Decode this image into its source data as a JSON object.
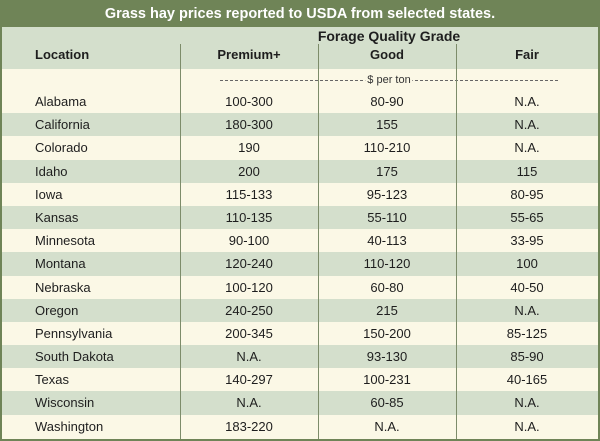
{
  "title": "Grass hay prices reported to USDA from selected states.",
  "header": {
    "group_label": "Forage Quality Grade",
    "columns": [
      "Location",
      "Premium+",
      "Good",
      "Fair"
    ]
  },
  "units": "$ per ton",
  "rows": [
    [
      "Alabama",
      "100-300",
      "80-90",
      "N.A."
    ],
    [
      "California",
      "180-300",
      "155",
      "N.A."
    ],
    [
      "Colorado",
      "190",
      "110-210",
      "N.A."
    ],
    [
      "Idaho",
      "200",
      "175",
      "115"
    ],
    [
      "Iowa",
      "115-133",
      "95-123",
      "80-95"
    ],
    [
      "Kansas",
      "110-135",
      "55-110",
      "55-65"
    ],
    [
      "Minnesota",
      "90-100",
      "40-113",
      "33-95"
    ],
    [
      "Montana",
      "120-240",
      "110-120",
      "100"
    ],
    [
      "Nebraska",
      "100-120",
      "60-80",
      "40-50"
    ],
    [
      "Oregon",
      "240-250",
      "215",
      "N.A."
    ],
    [
      "Pennsylvania",
      "200-345",
      "150-200",
      "85-125"
    ],
    [
      "South Dakota",
      "N.A.",
      "93-130",
      "85-90"
    ],
    [
      "Texas",
      "140-297",
      "100-231",
      "40-165"
    ],
    [
      "Wisconsin",
      "N.A.",
      "60-85",
      "N.A."
    ],
    [
      "Washington",
      "183-220",
      "N.A.",
      "N.A."
    ]
  ]
}
